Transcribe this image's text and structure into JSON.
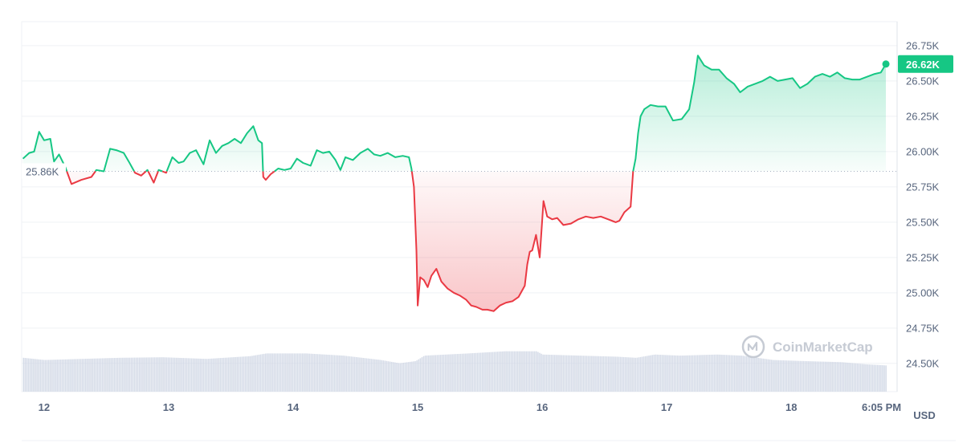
{
  "chart_data": {
    "type": "line",
    "series_kind": "baseline-price-area",
    "currency_label": "USD",
    "watermark": "CoinMarketCap",
    "baseline_value": 25860,
    "baseline_label": "25.86K",
    "current_value": 26620,
    "current_label": "26.62K",
    "ylim": [
      24300,
      26920
    ],
    "xlim": [
      11.82,
      18.85
    ],
    "y_ticks": [
      {
        "value": 26750,
        "label": "26.75K"
      },
      {
        "value": 26500,
        "label": "26.50K"
      },
      {
        "value": 26250,
        "label": "26.25K"
      },
      {
        "value": 26000,
        "label": "26.00K"
      },
      {
        "value": 25750,
        "label": "25.75K"
      },
      {
        "value": 25500,
        "label": "25.50K"
      },
      {
        "value": 25250,
        "label": "25.25K"
      },
      {
        "value": 25000,
        "label": "25.00K"
      },
      {
        "value": 24750,
        "label": "24.75K"
      },
      {
        "value": 24500,
        "label": "24.50K"
      }
    ],
    "x_ticks": [
      {
        "value": 12,
        "label": "12"
      },
      {
        "value": 13,
        "label": "13"
      },
      {
        "value": 14,
        "label": "14"
      },
      {
        "value": 15,
        "label": "15"
      },
      {
        "value": 16,
        "label": "16"
      },
      {
        "value": 17,
        "label": "17"
      },
      {
        "value": 18,
        "label": "18"
      },
      {
        "value": 18.87,
        "label": "6:05 PM"
      }
    ],
    "colors": {
      "up": "#16c784",
      "down": "#ea3943",
      "volume": "#cfd6e4",
      "grid": "#eff2f5",
      "baseline": "#a7b1c2",
      "text": "#58667e"
    },
    "price": [
      [
        11.83,
        25950
      ],
      [
        11.88,
        25990
      ],
      [
        11.92,
        26000
      ],
      [
        11.96,
        26140
      ],
      [
        12.0,
        26080
      ],
      [
        12.05,
        26090
      ],
      [
        12.08,
        25930
      ],
      [
        12.12,
        25980
      ],
      [
        12.17,
        25890
      ],
      [
        12.22,
        25770
      ],
      [
        12.3,
        25800
      ],
      [
        12.38,
        25820
      ],
      [
        12.42,
        25870
      ],
      [
        12.48,
        25860
      ],
      [
        12.53,
        26020
      ],
      [
        12.58,
        26010
      ],
      [
        12.64,
        25990
      ],
      [
        12.68,
        25930
      ],
      [
        12.73,
        25850
      ],
      [
        12.78,
        25830
      ],
      [
        12.83,
        25870
      ],
      [
        12.88,
        25780
      ],
      [
        12.92,
        25870
      ],
      [
        12.98,
        25850
      ],
      [
        13.03,
        25960
      ],
      [
        13.08,
        25920
      ],
      [
        13.12,
        25930
      ],
      [
        13.17,
        25990
      ],
      [
        13.22,
        26010
      ],
      [
        13.28,
        25910
      ],
      [
        13.33,
        26080
      ],
      [
        13.38,
        25990
      ],
      [
        13.43,
        26040
      ],
      [
        13.48,
        26060
      ],
      [
        13.53,
        26090
      ],
      [
        13.58,
        26060
      ],
      [
        13.63,
        26130
      ],
      [
        13.68,
        26180
      ],
      [
        13.72,
        26080
      ],
      [
        13.75,
        26060
      ],
      [
        13.76,
        25820
      ],
      [
        13.78,
        25800
      ],
      [
        13.82,
        25840
      ],
      [
        13.88,
        25880
      ],
      [
        13.93,
        25870
      ],
      [
        13.98,
        25880
      ],
      [
        14.03,
        25950
      ],
      [
        14.08,
        25920
      ],
      [
        14.14,
        25900
      ],
      [
        14.19,
        26010
      ],
      [
        14.24,
        25990
      ],
      [
        14.29,
        26000
      ],
      [
        14.34,
        25940
      ],
      [
        14.38,
        25870
      ],
      [
        14.42,
        25960
      ],
      [
        14.48,
        25940
      ],
      [
        14.54,
        25990
      ],
      [
        14.6,
        26020
      ],
      [
        14.65,
        25980
      ],
      [
        14.7,
        25970
      ],
      [
        14.76,
        25990
      ],
      [
        14.82,
        25960
      ],
      [
        14.88,
        25970
      ],
      [
        14.93,
        25960
      ],
      [
        14.95,
        25880
      ],
      [
        14.97,
        25750
      ],
      [
        14.99,
        25300
      ],
      [
        15.0,
        24910
      ],
      [
        15.02,
        25110
      ],
      [
        15.05,
        25090
      ],
      [
        15.08,
        25040
      ],
      [
        15.11,
        25120
      ],
      [
        15.15,
        25170
      ],
      [
        15.19,
        25080
      ],
      [
        15.24,
        25030
      ],
      [
        15.29,
        25000
      ],
      [
        15.34,
        24980
      ],
      [
        15.39,
        24950
      ],
      [
        15.43,
        24910
      ],
      [
        15.47,
        24900
      ],
      [
        15.52,
        24880
      ],
      [
        15.56,
        24880
      ],
      [
        15.61,
        24870
      ],
      [
        15.66,
        24910
      ],
      [
        15.71,
        24930
      ],
      [
        15.76,
        24940
      ],
      [
        15.81,
        24970
      ],
      [
        15.86,
        25050
      ],
      [
        15.88,
        25200
      ],
      [
        15.9,
        25290
      ],
      [
        15.92,
        25300
      ],
      [
        15.95,
        25410
      ],
      [
        15.98,
        25250
      ],
      [
        16.01,
        25650
      ],
      [
        16.04,
        25540
      ],
      [
        16.08,
        25520
      ],
      [
        16.12,
        25530
      ],
      [
        16.17,
        25480
      ],
      [
        16.23,
        25490
      ],
      [
        16.29,
        25520
      ],
      [
        16.35,
        25540
      ],
      [
        16.41,
        25530
      ],
      [
        16.47,
        25540
      ],
      [
        16.53,
        25520
      ],
      [
        16.59,
        25500
      ],
      [
        16.62,
        25510
      ],
      [
        16.66,
        25570
      ],
      [
        16.71,
        25610
      ],
      [
        16.73,
        25860
      ],
      [
        16.75,
        25950
      ],
      [
        16.77,
        26130
      ],
      [
        16.79,
        26250
      ],
      [
        16.82,
        26300
      ],
      [
        16.87,
        26330
      ],
      [
        16.93,
        26320
      ],
      [
        16.99,
        26320
      ],
      [
        17.05,
        26220
      ],
      [
        17.12,
        26230
      ],
      [
        17.18,
        26300
      ],
      [
        17.22,
        26490
      ],
      [
        17.25,
        26680
      ],
      [
        17.3,
        26610
      ],
      [
        17.36,
        26580
      ],
      [
        17.42,
        26580
      ],
      [
        17.48,
        26520
      ],
      [
        17.54,
        26480
      ],
      [
        17.59,
        26420
      ],
      [
        17.65,
        26460
      ],
      [
        17.71,
        26480
      ],
      [
        17.77,
        26500
      ],
      [
        17.83,
        26530
      ],
      [
        17.89,
        26500
      ],
      [
        17.95,
        26510
      ],
      [
        18.01,
        26520
      ],
      [
        18.07,
        26450
      ],
      [
        18.13,
        26480
      ],
      [
        18.19,
        26530
      ],
      [
        18.25,
        26550
      ],
      [
        18.31,
        26530
      ],
      [
        18.37,
        26560
      ],
      [
        18.43,
        26520
      ],
      [
        18.49,
        26510
      ],
      [
        18.55,
        26510
      ],
      [
        18.61,
        26530
      ],
      [
        18.67,
        26550
      ],
      [
        18.72,
        26560
      ],
      [
        18.76,
        26620
      ]
    ],
    "volume_level": [
      [
        11.83,
        0.62
      ],
      [
        12.0,
        0.58
      ],
      [
        12.3,
        0.6
      ],
      [
        12.6,
        0.62
      ],
      [
        12.95,
        0.63
      ],
      [
        13.3,
        0.6
      ],
      [
        13.65,
        0.65
      ],
      [
        13.78,
        0.7
      ],
      [
        14.1,
        0.7
      ],
      [
        14.4,
        0.66
      ],
      [
        14.7,
        0.58
      ],
      [
        14.85,
        0.52
      ],
      [
        14.98,
        0.56
      ],
      [
        15.05,
        0.66
      ],
      [
        15.4,
        0.7
      ],
      [
        15.7,
        0.74
      ],
      [
        15.95,
        0.74
      ],
      [
        16.0,
        0.68
      ],
      [
        16.3,
        0.66
      ],
      [
        16.6,
        0.64
      ],
      [
        16.75,
        0.62
      ],
      [
        16.9,
        0.68
      ],
      [
        17.1,
        0.66
      ],
      [
        17.4,
        0.68
      ],
      [
        17.6,
        0.66
      ],
      [
        17.85,
        0.58
      ],
      [
        18.1,
        0.56
      ],
      [
        18.4,
        0.54
      ],
      [
        18.6,
        0.5
      ],
      [
        18.76,
        0.48
      ]
    ]
  }
}
